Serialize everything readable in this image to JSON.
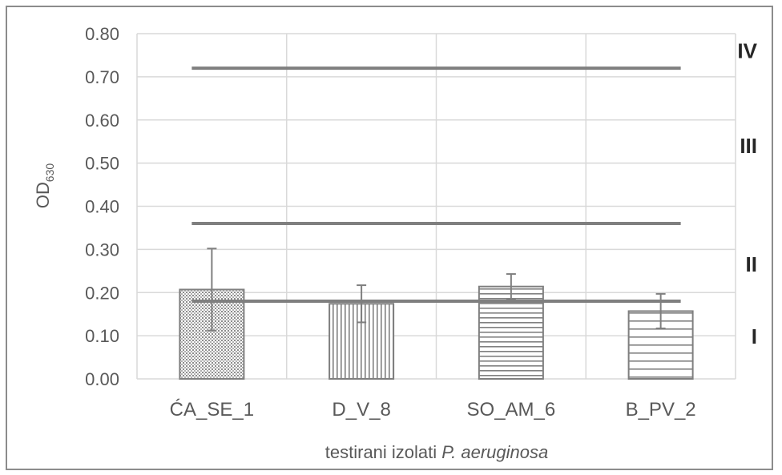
{
  "chart_data": {
    "type": "bar",
    "categories": [
      "ĆA_SE_1",
      "D_V_8",
      "SO_AM_6",
      "B_PV_2"
    ],
    "values": [
      0.207,
      0.174,
      0.214,
      0.157
    ],
    "error": [
      0.095,
      0.043,
      0.029,
      0.04
    ],
    "patterns": [
      "dots",
      "vertical",
      "horizontal",
      "horizontal-sparse"
    ],
    "ylabel": {
      "base": "OD",
      "sub": "630"
    },
    "xlabel": {
      "prefix": "testirani izolati ",
      "italic": "P. aeruginosa"
    },
    "ylim": [
      0,
      0.8
    ],
    "yticks": [
      "0.00",
      "0.10",
      "0.20",
      "0.30",
      "0.40",
      "0.50",
      "0.60",
      "0.70",
      "0.80"
    ],
    "thresholds": [
      0.18,
      0.36,
      0.72
    ],
    "zones": [
      {
        "label": "IV",
        "y": 0.76
      },
      {
        "label": "III",
        "y": 0.54
      },
      {
        "label": "II",
        "y": 0.265
      },
      {
        "label": "I",
        "y": 0.098
      }
    ],
    "grid": true,
    "colors": {
      "bar_border": "#7f7f7f",
      "pattern": "#808080",
      "threshold": "#7f7f7f",
      "error": "#7f7f7f",
      "grid": "#d9d9d9"
    }
  }
}
